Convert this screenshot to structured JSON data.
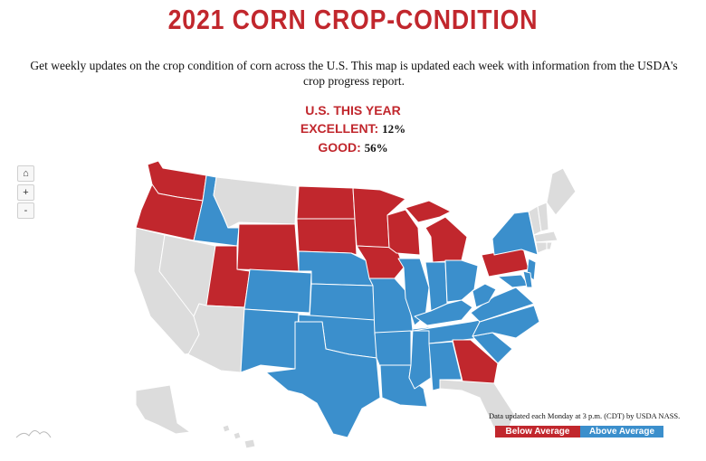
{
  "title": "2021 CORN CROP-CONDITION",
  "subtitle": "Get weekly updates on the crop condition of corn across the U.S. This map is updated each week with information from the USDA's crop progress report.",
  "stats": {
    "heading": "U.S. THIS YEAR",
    "excellent_label": "EXCELLENT:",
    "excellent_value": "12%",
    "good_label": "GOOD:",
    "good_value": "56%"
  },
  "controls": {
    "home": "⌂",
    "zoom_in": "+",
    "zoom_out": "-"
  },
  "note": "Data updated each Monday at 3 p.m. (CDT) by USDA NASS.",
  "legend": {
    "below": "Below Average",
    "above": "Above Average"
  },
  "colors": {
    "below": "#c1272d",
    "above": "#3b8fcc",
    "none": "#dcdcdc",
    "title": "#c1272d"
  },
  "states": {
    "WA": "below",
    "OR": "below",
    "ID": "above",
    "MT": "none",
    "WY": "below",
    "CA": "none",
    "NV": "none",
    "UT": "below",
    "AZ": "none",
    "CO": "above",
    "NM": "above",
    "ND": "below",
    "SD": "below",
    "NE": "above",
    "KS": "above",
    "OK": "above",
    "TX": "above",
    "MN": "below",
    "IA": "below",
    "MO": "above",
    "AR": "above",
    "LA": "above",
    "WI": "below",
    "IL": "above",
    "MS": "above",
    "MI": "below",
    "IN": "above",
    "KY": "above",
    "TN": "above",
    "AL": "above",
    "OH": "above",
    "WV": "above",
    "VA": "above",
    "NC": "above",
    "SC": "above",
    "GA": "below",
    "FL": "none",
    "PA": "below",
    "NY": "above",
    "NJ": "above",
    "DE": "above",
    "MD": "above",
    "VT": "none",
    "NH": "none",
    "ME": "none",
    "MA": "none",
    "CT": "none",
    "RI": "none",
    "AK": "none",
    "HI": "none"
  }
}
